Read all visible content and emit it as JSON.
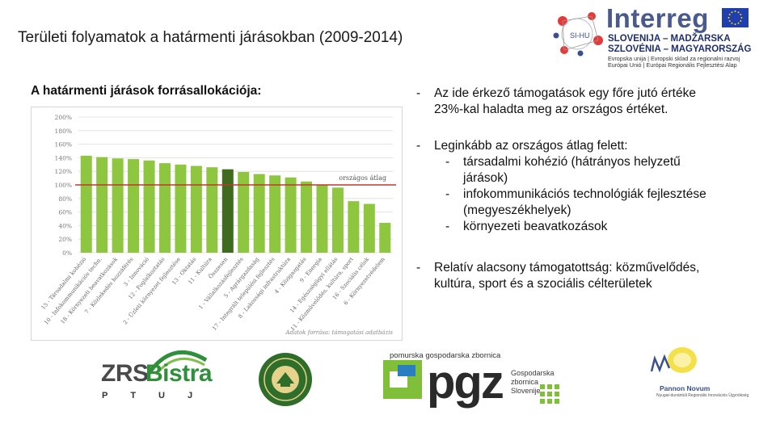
{
  "header": {
    "title": "Területi folyamatok a határmenti járásokban  (2009-2014)",
    "section_heading": "A határmenti járások forrásallokációja:"
  },
  "interreg_logo": {
    "wordmark": "Interreg",
    "line1": "SLOVENIJA – MADŽARSKA",
    "line2": "SZLOVÉNIA – MAGYARORSZÁG",
    "fine1": "Evropska unija | Evropski sklad za regionalni razvoj",
    "fine2": "Európai Unió | Európai Regionális Fejlesztési Alap",
    "project_badge": "SI-HU",
    "icon": "interreg-network-icon"
  },
  "chart_data": {
    "type": "bar",
    "title": "",
    "xlabel": "",
    "ylabel": "",
    "ylim": [
      0,
      200
    ],
    "y_ticks": [
      "0%",
      "20%",
      "40%",
      "60%",
      "80%",
      "100%",
      "120%",
      "140%",
      "160%",
      "180%",
      "200%"
    ],
    "categories": [
      "15 - Társadalmi kohézió",
      "10 - Infokommunikációs techn.",
      "18 - Környezeti beavatkozások",
      "7 - Közlekedés hozzáférés",
      "3 - Innováció",
      "12 - Foglalkoztatás",
      "2 - Üzleti környezet fejlesztése",
      "13 - Oktatás",
      "11 - Kultúra",
      "Összesen",
      "1 - Vállalkozásfejlesztés",
      "5 - Agrárgazdaság",
      "17 - Integrált települési fejlesztés",
      "8 - Lakossági infrastruktúra",
      "4 - Közigazgatás",
      "9 - Energia",
      "14 - Egészségügyi ellátás",
      "11 - Közművelődés, kultúra, sport",
      "16 - Szociális célok",
      "6 - Környezetvédelem"
    ],
    "values": [
      143,
      141,
      139,
      138,
      136,
      132,
      130,
      128,
      126,
      123,
      119,
      116,
      114,
      111,
      105,
      100,
      96,
      76,
      72,
      44
    ],
    "highlight_category": "Összesen",
    "reference_line": {
      "label": "országos átlag",
      "value": 100
    },
    "source_note": "Adatok forrása: támogatási adatbázis",
    "grid": true,
    "colors": {
      "bar": "#8ec63f",
      "highlight": "#3f6b1e",
      "reference": "#c0392b",
      "grid": "#dcdcdc"
    }
  },
  "bullets": [
    {
      "dash": "-",
      "text_line1": "Az ide érkező támogatások egy főre jutó értéke",
      "text_line2": "23%-kal haladta meg az országos értéket."
    },
    {
      "dash": "-",
      "text": "Leginkább az országos átlag felett:",
      "sub_items": [
        {
          "dash": "-",
          "line1": "társadalmi kohézió (hátrányos helyzetű",
          "line2": "járások)"
        },
        {
          "dash": "-",
          "line1": "infokommunikációs technológiák fejlesztése",
          "line2": "(megyeszékhelyek)"
        },
        {
          "dash": "-",
          "line1": "környezeti beavatkozások",
          "line2": ""
        }
      ]
    },
    {
      "dash": "-",
      "text_line1": "Relatív alacsony támogatottság: közművelődés,",
      "text_line2": "kultúra, sport és a szociális célterületek"
    }
  ],
  "footer_logos": {
    "zrs": {
      "word1": "ZRS",
      "word2": "Bistra",
      "sub": "PTUJ"
    },
    "seal": {
      "icon": "seal-icon"
    },
    "pgz": {
      "top": "pomurska gospodarska zbornica",
      "letters": "pgz",
      "sub1": "Gospodarska",
      "sub2": "zbornica",
      "sub3": "Slovenije"
    },
    "pannon": {
      "title": "Pannon Novum",
      "fine": "Nyugat-dunántúli Regionális Innovációs Ügynökség"
    }
  }
}
